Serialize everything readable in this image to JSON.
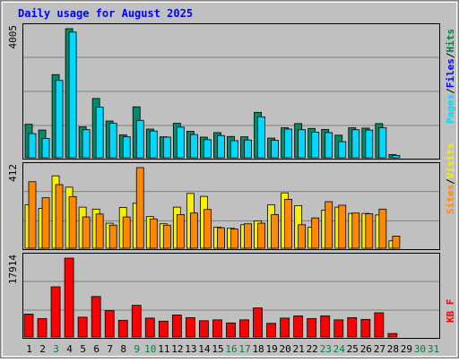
{
  "chart_data": {
    "type": "bar",
    "title": "Daily usage for August 2025",
    "colors": {
      "background": "#c0c0c0",
      "title": "#0000ff",
      "weekday_label": "#000000",
      "weekend_label": "#008040",
      "hits": "#008b6b",
      "files": "#00d8ff",
      "pages": "#00d8ff",
      "visits": "#f8f000",
      "sites": "#ff8800",
      "kbf": "#ff0000",
      "sep": "#000000",
      "hits_legend": "#008040",
      "files_legend": "#0000ff"
    },
    "x": [
      "1",
      "2",
      "3",
      "4",
      "5",
      "6",
      "7",
      "8",
      "9",
      "10",
      "11",
      "12",
      "13",
      "14",
      "15",
      "16",
      "17",
      "18",
      "19",
      "20",
      "21",
      "22",
      "23",
      "24",
      "25",
      "26",
      "27",
      "28",
      "29",
      "30",
      "31"
    ],
    "weekend_days": [
      "3",
      "9",
      "10",
      "16",
      "17",
      "23",
      "24",
      "30",
      "31"
    ],
    "panels": [
      {
        "id": "hits-files",
        "scale_label": "4005",
        "legend": [
          {
            "text": "Pages",
            "color_key": "pages"
          },
          {
            "text": "/",
            "color_key": "sep"
          },
          {
            "text": "Files",
            "color_key": "files_legend"
          },
          {
            "text": "/",
            "color_key": "sep"
          },
          {
            "text": "Hits",
            "color_key": "hits_legend"
          }
        ],
        "max": 4005,
        "series": [
          {
            "name": "Hits",
            "color_key": "hits",
            "values": [
              1040,
              860,
              2580,
              4005,
              960,
              1840,
              1140,
              710,
              1580,
              890,
              650,
              1070,
              820,
              640,
              780,
              660,
              650,
              1410,
              610,
              930,
              1060,
              910,
              880,
              700,
              930,
              920,
              1060,
              100,
              0,
              0,
              0
            ]
          },
          {
            "name": "Files",
            "color_key": "files",
            "values": [
              750,
              600,
              2400,
              3900,
              870,
              1570,
              1070,
              650,
              1160,
              830,
              640,
              950,
              720,
              560,
              690,
              530,
              550,
              1270,
              540,
              890,
              870,
              790,
              780,
              500,
              870,
              860,
              930,
              70,
              0,
              0,
              0
            ]
          }
        ]
      },
      {
        "id": "visits-sites",
        "scale_label": "412",
        "legend": [
          {
            "text": "Sites",
            "color_key": "sites"
          },
          {
            "text": "/",
            "color_key": "sep"
          },
          {
            "text": "Visits",
            "color_key": "visits"
          }
        ],
        "max": 412,
        "series": [
          {
            "name": "Visits",
            "color_key": "visits",
            "values": [
              222,
              204,
              370,
              312,
              210,
              200,
              128,
              208,
              230,
              162,
              125,
              210,
              280,
              265,
              108,
              102,
              120,
              140,
              222,
              283,
              218,
              108,
              195,
              210,
              178,
              178,
              170,
              38,
              0,
              0,
              0
            ]
          },
          {
            "name": "Sites",
            "color_key": "sites",
            "values": [
              340,
              258,
              325,
              264,
              160,
              175,
              118,
              160,
              412,
              150,
              118,
              172,
              180,
              198,
              105,
              98,
              125,
              128,
              172,
              250,
              120,
              155,
              238,
              220,
              180,
              176,
              200,
              62,
              0,
              0,
              0
            ]
          }
        ]
      },
      {
        "id": "kbf",
        "scale_label": "17914",
        "legend": [
          {
            "text": "KB F",
            "color_key": "kbf"
          }
        ],
        "max": 17914,
        "series": [
          {
            "name": "KB F",
            "color_key": "kbf",
            "values": [
              5200,
              4200,
              11400,
              17914,
              4500,
              9200,
              6000,
              3800,
              7200,
              4300,
              3600,
              5000,
              4400,
              3700,
              3900,
              3200,
              3900,
              6600,
              3100,
              4300,
              4800,
              4200,
              4800,
              3900,
              4400,
              4000,
              5500,
              800,
              0,
              0,
              0
            ]
          }
        ]
      }
    ]
  }
}
